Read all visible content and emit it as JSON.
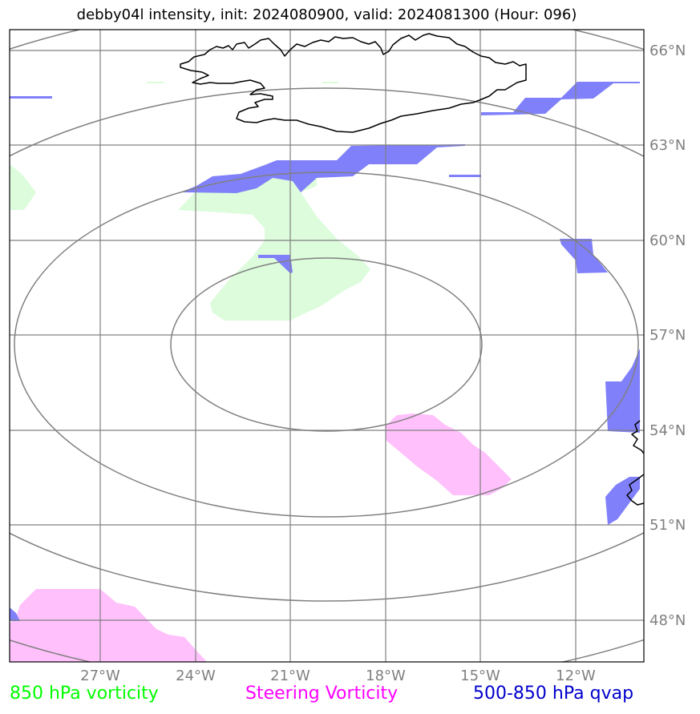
{
  "title": "debby04l intensity, init: 2024080900, valid: 2024081300 (Hour: 096)",
  "lon_ticks": [
    "27°W",
    "24°W",
    "21°W",
    "18°W",
    "15°W",
    "12°W"
  ],
  "lat_ticks": [
    "66°N",
    "63°N",
    "60°N",
    "57°N",
    "54°N",
    "51°N",
    "48°N"
  ],
  "legend": {
    "vort850": "850 hPa vorticity",
    "steering": "Steering Vorticity",
    "qvap": "500-850 hPa qvap"
  },
  "colors": {
    "vort850_text": "#00ff00",
    "steering_text": "#ff00ff",
    "qvap_text": "#0000cc",
    "vort850_fill": "#dcfcdc",
    "steering_fill": "#ffc0fb",
    "qvap_fill": "#8080fa",
    "grid": "#808080",
    "coast": "#000000"
  }
}
